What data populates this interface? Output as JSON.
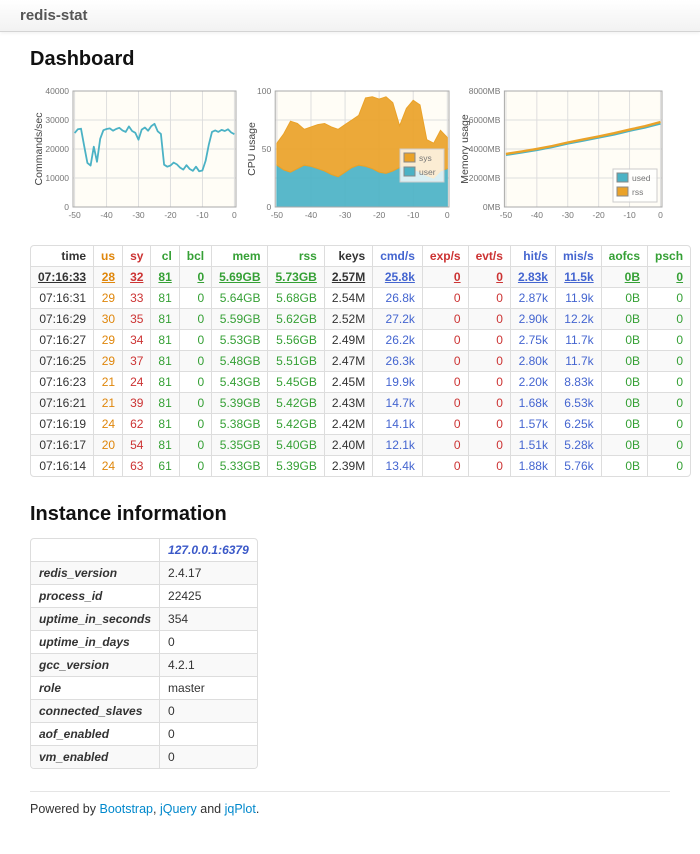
{
  "navbar": {
    "brand": "redis-stat"
  },
  "dashboard": {
    "title": "Dashboard"
  },
  "colors": {
    "link_blue": "#0088cc",
    "column_dark": "#333333",
    "column_orange": "#df860b",
    "column_red": "#cc3333",
    "column_green": "#35a035",
    "column_blue": "#4465d0",
    "series_teal": "#4bb2c5",
    "series_orange": "#eaa228"
  },
  "chart_data": [
    {
      "type": "line",
      "title": "",
      "ylabel": "Commands/sec",
      "xlabel": "",
      "xlim": [
        -50.5,
        0.5
      ],
      "ylim": [
        0,
        40000
      ],
      "x_ticks": [
        -50,
        -40,
        -30,
        -20,
        -10,
        0
      ],
      "y_ticks": [
        [
          0,
          "0"
        ],
        [
          10000,
          "10000"
        ],
        [
          20000,
          "20000"
        ],
        [
          30000,
          "30000"
        ],
        [
          40000,
          "40000"
        ]
      ],
      "x_range": [
        -50,
        0
      ],
      "line_width": 1.8,
      "series": [
        {
          "name": "cmd/s",
          "color": "#4bb2c5",
          "values": [
            25500,
            26800,
            27000,
            21000,
            15200,
            14300,
            20800,
            15600,
            23500,
            26500,
            26900,
            27100,
            26300,
            26900,
            27300,
            26400,
            25900,
            27800,
            26200,
            25600,
            23200,
            26700,
            27400,
            26300,
            27900,
            28700,
            26100,
            25200,
            14600,
            13900,
            14300,
            15300,
            14700,
            13600,
            12900,
            14400,
            13100,
            12500,
            13900,
            12300,
            12600,
            15900,
            21500,
            25900,
            26400,
            25900,
            26600,
            26200,
            26800,
            25700,
            25100
          ]
        }
      ],
      "legend": null
    },
    {
      "type": "stacked-area",
      "title": "",
      "ylabel": "CPU usage",
      "xlabel": "",
      "xlim": [
        -50.5,
        0.5
      ],
      "ylim": [
        0,
        100
      ],
      "x_ticks": [
        -50,
        -40,
        -30,
        -20,
        -10,
        0
      ],
      "y_ticks": [
        [
          0,
          "0"
        ],
        [
          25,
          ""
        ],
        [
          50,
          "50"
        ],
        [
          75,
          ""
        ],
        [
          100,
          "100"
        ]
      ],
      "x_range": [
        -50,
        0
      ],
      "series": [
        {
          "name": "user",
          "color": "#4bb2c5",
          "values": [
            36,
            32,
            30,
            33,
            36,
            35,
            33,
            31,
            28,
            26,
            30,
            34,
            36,
            35,
            33,
            30,
            29,
            31,
            34,
            36,
            33,
            30,
            27,
            25,
            31,
            33
          ]
        },
        {
          "name": "sys",
          "color": "#eaa228",
          "values": [
            19,
            31,
            44,
            39,
            31,
            34,
            38,
            41,
            41,
            41,
            41,
            41,
            43,
            59,
            62,
            63,
            66,
            59,
            36,
            49,
            59,
            58,
            31,
            30,
            35,
            27
          ]
        }
      ],
      "legend": {
        "pos": "right-middle",
        "items": [
          [
            "sys",
            "#eaa228"
          ],
          [
            "user",
            "#4bb2c5"
          ]
        ]
      }
    },
    {
      "type": "line",
      "title": "",
      "ylabel": "Memory usage",
      "xlabel": "",
      "xlim": [
        -50.5,
        0.5
      ],
      "ylim": [
        0,
        8000
      ],
      "x_ticks": [
        -50,
        -40,
        -30,
        -20,
        -10,
        0
      ],
      "y_ticks": [
        [
          0,
          "0MB"
        ],
        [
          2000,
          "2000MB"
        ],
        [
          4000,
          "4000MB"
        ],
        [
          6000,
          "6000MB"
        ],
        [
          8000,
          "8000MB"
        ]
      ],
      "x_range": [
        -50,
        0
      ],
      "line_width": 2.4,
      "series": [
        {
          "name": "used",
          "color": "#4bb2c5",
          "values": [
            3600,
            3760,
            3940,
            4140,
            4380,
            4580,
            4790,
            5010,
            5260,
            5490,
            5760
          ]
        },
        {
          "name": "rss",
          "color": "#eaa228",
          "values": [
            3660,
            3830,
            4010,
            4210,
            4450,
            4660,
            4870,
            5090,
            5340,
            5570,
            5860
          ]
        }
      ],
      "legend": {
        "pos": "right-bottom",
        "items": [
          [
            "used",
            "#4bb2c5"
          ],
          [
            "rss",
            "#eaa228"
          ]
        ]
      }
    }
  ],
  "stats_table": {
    "columns": [
      "time",
      "us",
      "sy",
      "cl",
      "bcl",
      "mem",
      "rss",
      "keys",
      "cmd/s",
      "exp/s",
      "evt/s",
      "hit/s",
      "mis/s",
      "aofcs",
      "psch"
    ],
    "col_colors": [
      "dark",
      "orange",
      "red",
      "green",
      "green",
      "green",
      "green",
      "dark",
      "blue",
      "red",
      "red",
      "blue",
      "blue",
      "green",
      "green"
    ],
    "rows": [
      [
        "07:16:33",
        "28",
        "32",
        "81",
        "0",
        "5.69GB",
        "5.73GB",
        "2.57M",
        "25.8k",
        "0",
        "0",
        "2.83k",
        "11.5k",
        "0B",
        "0"
      ],
      [
        "07:16:31",
        "29",
        "33",
        "81",
        "0",
        "5.64GB",
        "5.68GB",
        "2.54M",
        "26.8k",
        "0",
        "0",
        "2.87k",
        "11.9k",
        "0B",
        "0"
      ],
      [
        "07:16:29",
        "30",
        "35",
        "81",
        "0",
        "5.59GB",
        "5.62GB",
        "2.52M",
        "27.2k",
        "0",
        "0",
        "2.90k",
        "12.2k",
        "0B",
        "0"
      ],
      [
        "07:16:27",
        "29",
        "34",
        "81",
        "0",
        "5.53GB",
        "5.56GB",
        "2.49M",
        "26.2k",
        "0",
        "0",
        "2.75k",
        "11.7k",
        "0B",
        "0"
      ],
      [
        "07:16:25",
        "29",
        "37",
        "81",
        "0",
        "5.48GB",
        "5.51GB",
        "2.47M",
        "26.3k",
        "0",
        "0",
        "2.80k",
        "11.7k",
        "0B",
        "0"
      ],
      [
        "07:16:23",
        "21",
        "24",
        "81",
        "0",
        "5.43GB",
        "5.45GB",
        "2.45M",
        "19.9k",
        "0",
        "0",
        "2.20k",
        "8.83k",
        "0B",
        "0"
      ],
      [
        "07:16:21",
        "21",
        "39",
        "81",
        "0",
        "5.39GB",
        "5.42GB",
        "2.43M",
        "14.7k",
        "0",
        "0",
        "1.68k",
        "6.53k",
        "0B",
        "0"
      ],
      [
        "07:16:19",
        "24",
        "62",
        "81",
        "0",
        "5.38GB",
        "5.42GB",
        "2.42M",
        "14.1k",
        "0",
        "0",
        "1.57k",
        "6.25k",
        "0B",
        "0"
      ],
      [
        "07:16:17",
        "20",
        "54",
        "81",
        "0",
        "5.35GB",
        "5.40GB",
        "2.40M",
        "12.1k",
        "0",
        "0",
        "1.51k",
        "5.28k",
        "0B",
        "0"
      ],
      [
        "07:16:14",
        "24",
        "63",
        "61",
        "0",
        "5.33GB",
        "5.39GB",
        "2.39M",
        "13.4k",
        "0",
        "0",
        "1.88k",
        "5.76k",
        "0B",
        "0"
      ]
    ]
  },
  "instance": {
    "title": "Instance information",
    "host": "127.0.0.1:6379",
    "rows": [
      [
        "redis_version",
        "2.4.17"
      ],
      [
        "process_id",
        "22425"
      ],
      [
        "uptime_in_seconds",
        "354"
      ],
      [
        "uptime_in_days",
        "0"
      ],
      [
        "gcc_version",
        "4.2.1"
      ],
      [
        "role",
        "master"
      ],
      [
        "connected_slaves",
        "0"
      ],
      [
        "aof_enabled",
        "0"
      ],
      [
        "vm_enabled",
        "0"
      ]
    ]
  },
  "footer": {
    "powered_by": "Powered by ",
    "links": [
      "Bootstrap",
      "jQuery",
      "jqPlot"
    ],
    "sep1": ", ",
    "sep2": " and ",
    "period": "."
  }
}
